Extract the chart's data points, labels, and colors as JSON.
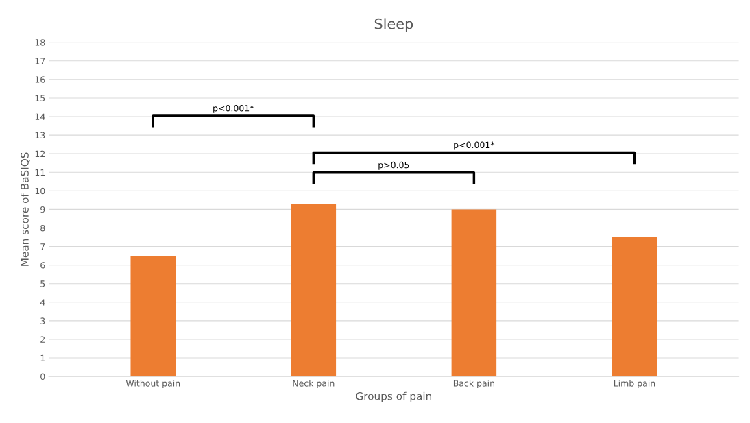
{
  "chart_data": {
    "type": "bar",
    "title": "Sleep",
    "xlabel": "Groups of pain",
    "ylabel": "Mean score of BaSIQS",
    "categories": [
      "Without pain",
      "Neck pain",
      "Back pain",
      "Limb pain"
    ],
    "values": [
      6.5,
      9.3,
      9.0,
      7.5
    ],
    "color": "#ed7d31",
    "ylim": [
      0,
      18
    ],
    "yticks": [
      0,
      1,
      2,
      3,
      4,
      5,
      6,
      7,
      8,
      9,
      10,
      11,
      12,
      13,
      14,
      15,
      16,
      17,
      18
    ],
    "grid": "y",
    "legend": false,
    "annotations": [
      "p<0.001*",
      "p<0.001*",
      "p>0.05"
    ]
  }
}
